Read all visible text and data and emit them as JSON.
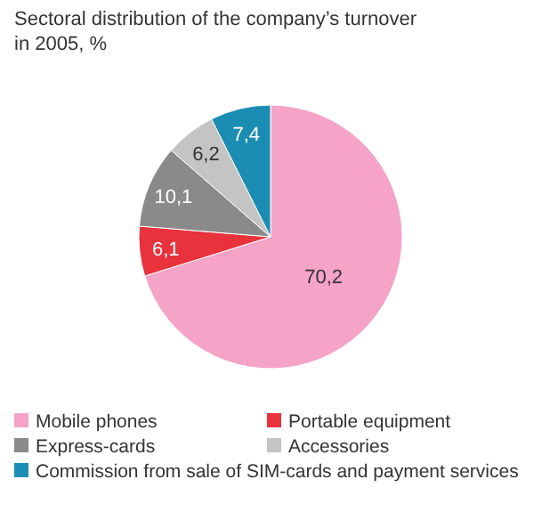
{
  "chart_data": {
    "type": "pie",
    "title": "Sectoral distribution of the company’s turnover in 2005, %",
    "categories": [
      "Mobile phones",
      "Portable equipment",
      "Express-cards",
      "Accessories",
      "Commission from sale of SIM-cards and payment services"
    ],
    "values": [
      70.2,
      6.1,
      10.1,
      6.2,
      7.4
    ],
    "colors": [
      "#f5a3c7",
      "#e8323c",
      "#8a8a8a",
      "#c4c4c4",
      "#1b8db3"
    ],
    "value_labels": [
      "70,2",
      "6,1",
      "10,1",
      "6,2",
      "7,4"
    ],
    "legend": "bottom"
  }
}
